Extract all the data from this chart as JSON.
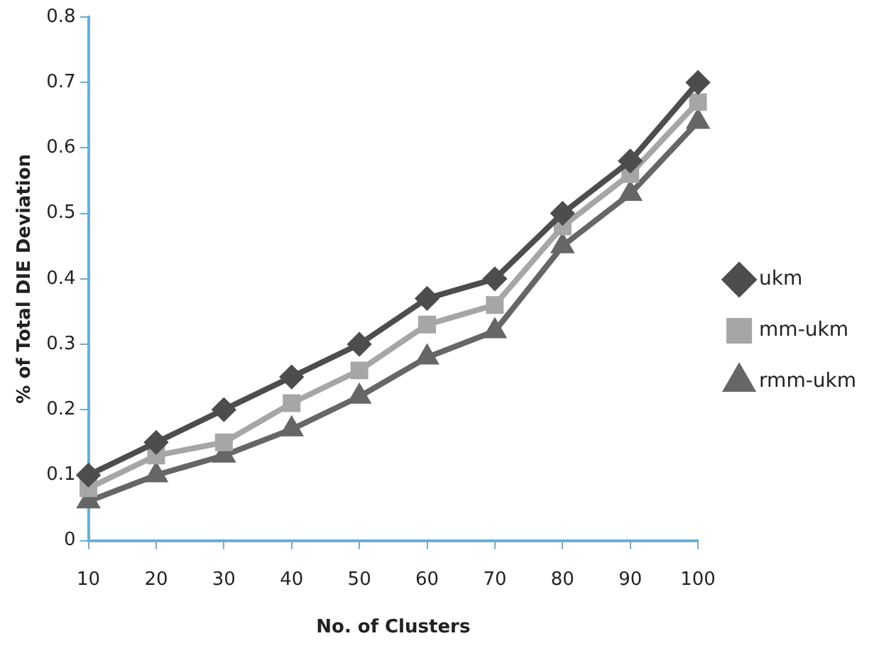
{
  "chart_data": {
    "type": "line",
    "xlabel": "No. of Clusters",
    "ylabel": "% of Total DIE Deviation",
    "categories": [
      "10",
      "20",
      "30",
      "40",
      "50",
      "60",
      "70",
      "80",
      "90",
      "100"
    ],
    "series": [
      {
        "name": "ukm",
        "color": "#4d4d4d",
        "marker": "diamond",
        "values": [
          0.1,
          0.15,
          0.2,
          0.25,
          0.3,
          0.37,
          0.4,
          0.5,
          0.58,
          0.7
        ]
      },
      {
        "name": "mm-ukm",
        "color": "#a6a6a6",
        "marker": "square",
        "values": [
          0.08,
          0.13,
          0.15,
          0.21,
          0.26,
          0.33,
          0.36,
          0.48,
          0.56,
          0.67
        ]
      },
      {
        "name": "rmm-ukm",
        "color": "#666666",
        "marker": "triangle",
        "values": [
          0.06,
          0.1,
          0.13,
          0.17,
          0.22,
          0.28,
          0.32,
          0.45,
          0.53,
          0.64
        ]
      }
    ],
    "ylim": [
      0,
      0.8
    ],
    "yticks": [
      0,
      0.1,
      0.2,
      0.3,
      0.4,
      0.5,
      0.6,
      0.7,
      0.8
    ],
    "grid": false,
    "legend": "right",
    "line_style": "solid"
  }
}
